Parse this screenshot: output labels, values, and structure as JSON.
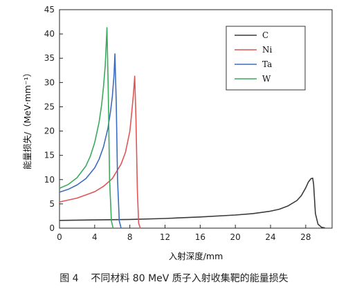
{
  "caption": "图 4    不同材料 80 MeV 质子入射收集靶的能量损失",
  "chart_data": {
    "type": "line",
    "title": "",
    "xlabel": "入射深度/mm",
    "ylabel": "能量损失/（MeV·mm⁻¹）",
    "xlim": [
      0,
      31
    ],
    "ylim": [
      0,
      45
    ],
    "xticks": [
      0,
      4,
      8,
      12,
      16,
      20,
      24,
      28
    ],
    "yticks": [
      0,
      5,
      10,
      15,
      20,
      25,
      30,
      35,
      40,
      45
    ],
    "grid": false,
    "legend_position": "top-right",
    "series": [
      {
        "name": "C",
        "color": "#3a3a3a",
        "x": [
          0,
          4,
          8,
          12,
          16,
          20,
          22,
          24,
          25,
          26,
          27,
          27.5,
          28,
          28.3,
          28.6,
          28.8,
          28.9,
          29.1,
          29.4,
          29.8,
          30.2
        ],
        "y": [
          1.6,
          1.7,
          1.8,
          2.0,
          2.3,
          2.7,
          3.0,
          3.5,
          3.9,
          4.6,
          5.7,
          6.7,
          8.3,
          9.5,
          10.2,
          10.3,
          9.0,
          3.0,
          0.8,
          0.2,
          0.05
        ]
      },
      {
        "name": "Ni",
        "color": "#e05555",
        "x": [
          0,
          2,
          4,
          5,
          6,
          7,
          7.5,
          8,
          8.2,
          8.4,
          8.55,
          8.7,
          8.85,
          9.0,
          9.2
        ],
        "y": [
          5.4,
          6.2,
          7.5,
          8.6,
          10.2,
          13.2,
          15.6,
          20.0,
          23.5,
          27.5,
          31.3,
          22.0,
          8.0,
          1.0,
          0
        ]
      },
      {
        "name": "Ta",
        "color": "#3b6cc0",
        "x": [
          0,
          1,
          2,
          3,
          4,
          4.5,
          5,
          5.5,
          5.8,
          6.0,
          6.2,
          6.3,
          6.45,
          6.6,
          6.8,
          7.0
        ],
        "y": [
          7.4,
          8.0,
          8.9,
          10.2,
          12.4,
          14.2,
          16.7,
          20.5,
          24.0,
          27.0,
          31.5,
          35.9,
          26.0,
          10.0,
          1.5,
          0
        ]
      },
      {
        "name": "W",
        "color": "#3aaa5c",
        "x": [
          0,
          1,
          2,
          3,
          3.5,
          4,
          4.5,
          4.8,
          5.0,
          5.2,
          5.3,
          5.4,
          5.55,
          5.7,
          5.9,
          6.1
        ],
        "y": [
          8.2,
          9.0,
          10.4,
          12.8,
          14.8,
          17.6,
          21.8,
          25.5,
          29.0,
          33.5,
          37.5,
          41.3,
          28.0,
          10.0,
          1.5,
          0
        ]
      }
    ]
  }
}
